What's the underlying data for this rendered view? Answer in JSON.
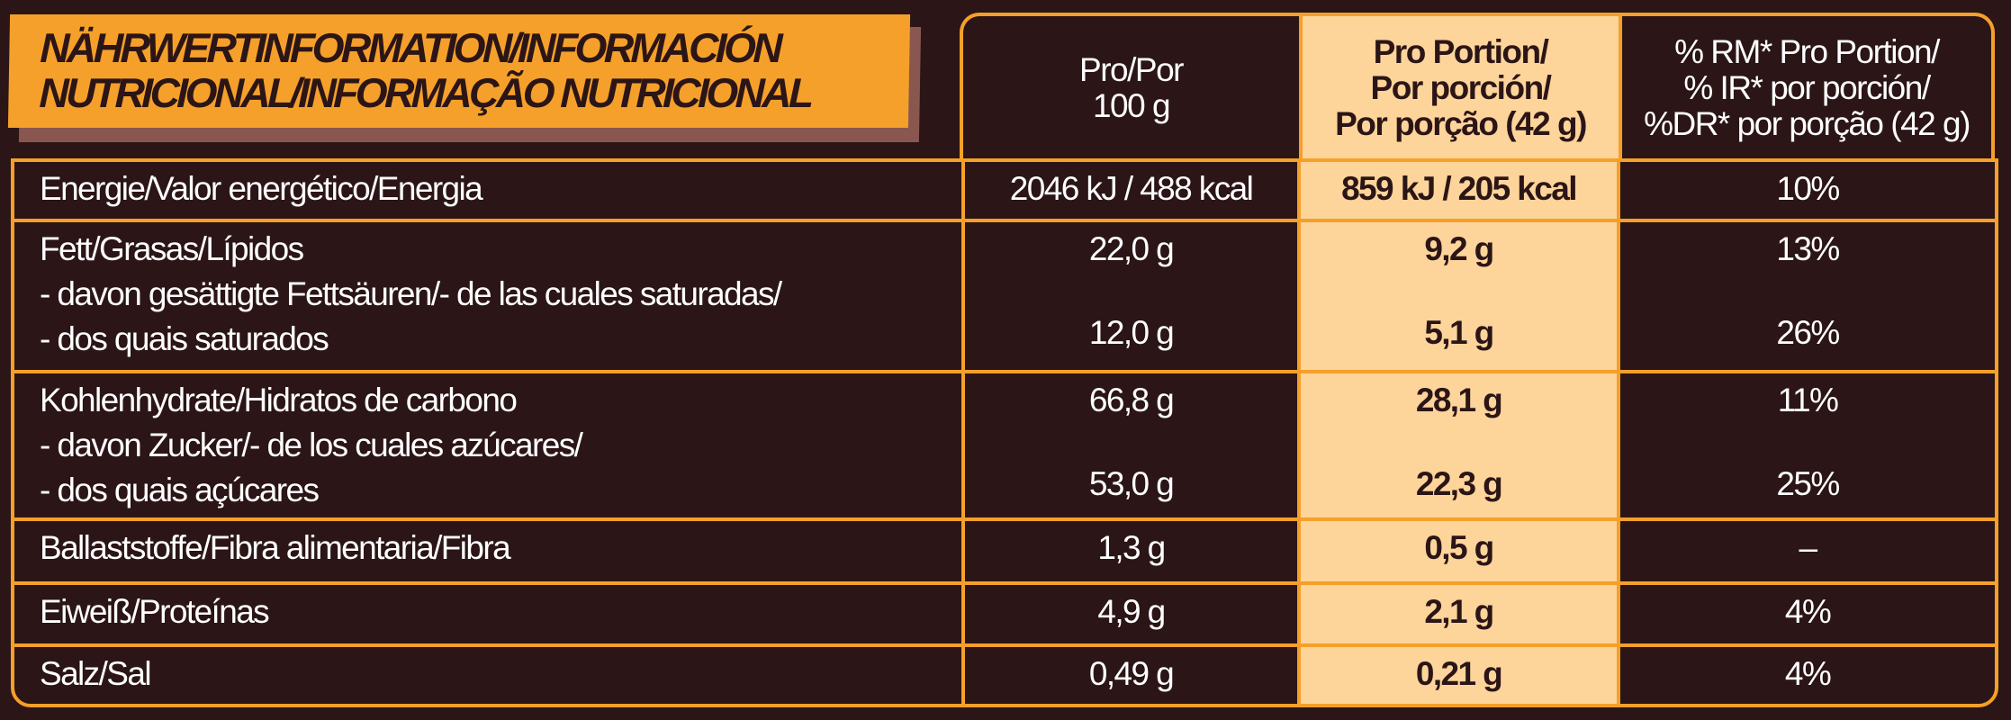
{
  "title": {
    "line1": "NÄHRWERTINFORMATION/INFORMACIÓN",
    "line2": "NUTRICIONAL/INFORMAÇÃO NUTRICIONAL"
  },
  "headers": {
    "per100": [
      "Pro/Por",
      "100 g"
    ],
    "portion": [
      "Pro Portion/",
      "Por porción/",
      "Por porção (42 g)"
    ],
    "ri": [
      "% RM* Pro Portion/",
      "% IR* por porción/",
      "%DR* por porção (42 g)"
    ]
  },
  "colors": {
    "background": "#2b1516",
    "accent": "#f5a02a",
    "portion_column": "#fdd49a"
  },
  "rows": {
    "energy": {
      "label": "Energie/Valor energético/Energia",
      "per100": "2046 kJ / 488 kcal",
      "portion": "859 kJ / 205 kcal",
      "ri": "10%"
    },
    "fat": {
      "label": "Fett/Grasas/Lípidos",
      "per100": "22,0 g",
      "portion": "9,2 g",
      "ri": "13%",
      "sub_label1": "- davon gesättigte Fettsäuren/- de las cuales saturadas/",
      "sub_label2": "- dos quais saturados",
      "sub_per100": "12,0 g",
      "sub_portion": "5,1 g",
      "sub_ri": "26%"
    },
    "carbs": {
      "label": "Kohlenhydrate/Hidratos de carbono",
      "per100": "66,8 g",
      "portion": "28,1 g",
      "ri": "11%",
      "sub_label1": "- davon Zucker/- de los cuales azúcares/",
      "sub_label2": "- dos quais açúcares",
      "sub_per100": "53,0 g",
      "sub_portion": "22,3 g",
      "sub_ri": "25%"
    },
    "fiber": {
      "label": "Ballaststoffe/Fibra alimentaria/Fibra",
      "per100": "1,3 g",
      "portion": "0,5 g",
      "ri": "–"
    },
    "protein": {
      "label": "Eiweiß/Proteínas",
      "per100": "4,9 g",
      "portion": "2,1 g",
      "ri": "4%"
    },
    "salt": {
      "label": "Salz/Sal",
      "per100": "0,49 g",
      "portion": "0,21 g",
      "ri": "4%"
    }
  }
}
